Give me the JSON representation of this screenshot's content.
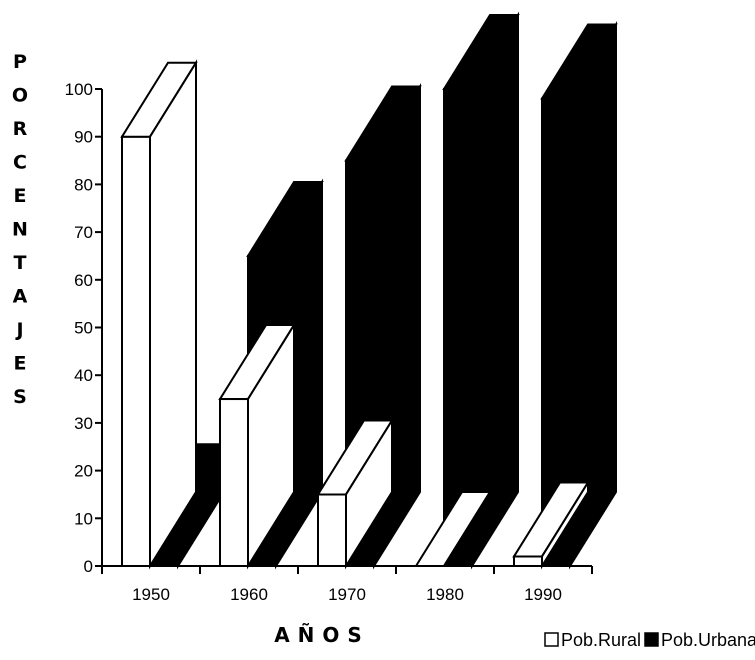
{
  "chart_data": {
    "type": "bar",
    "title": "",
    "ylabel": "PORCENTAJES",
    "xlabel": "AÑOS",
    "ylim": [
      0,
      100
    ],
    "y_ticks": [
      "0",
      "10",
      "20",
      "30",
      "40",
      "50",
      "60",
      "70",
      "80",
      "90",
      "100"
    ],
    "categories": [
      "1950",
      "1960",
      "1970",
      "1980",
      "1990"
    ],
    "series": [
      {
        "name": "Pob.Rural",
        "color": "#ffffff",
        "values": [
          90,
          35,
          15,
          0,
          2
        ]
      },
      {
        "name": "Pob.Urbana",
        "color": "#000000",
        "values": [
          10,
          65,
          85,
          100,
          98
        ]
      }
    ],
    "legend_position": "bottom-right",
    "grid": false,
    "style": "3d-bar"
  }
}
